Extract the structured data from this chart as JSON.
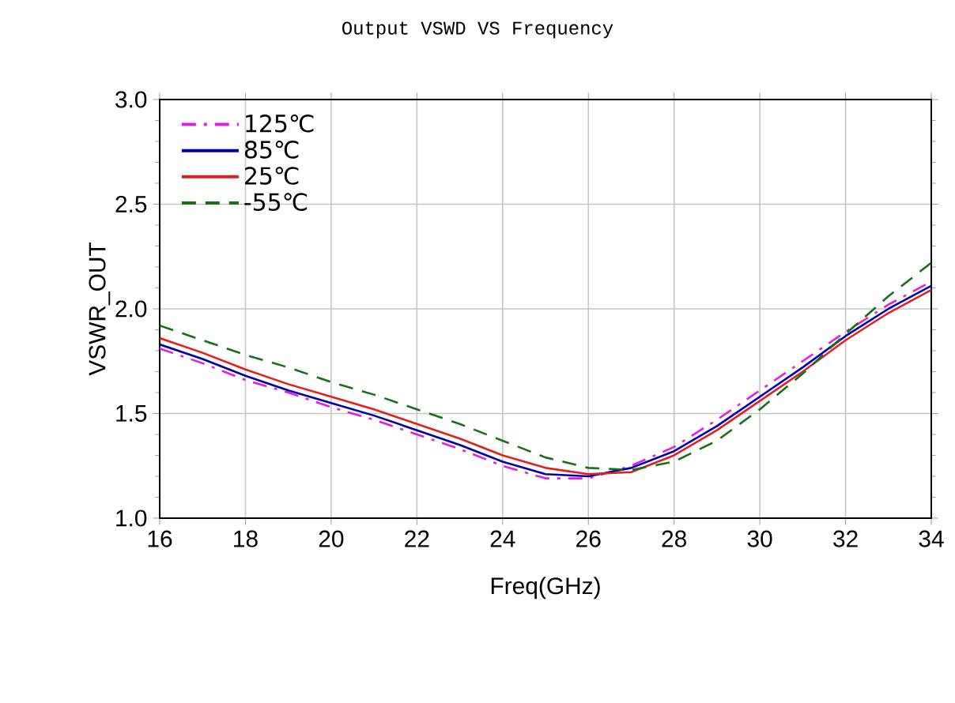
{
  "chart_data": {
    "type": "line",
    "title": "Output VSWD VS Frequency",
    "xlabel": "Freq(GHz)",
    "ylabel": "VSWR_OUT",
    "x": [
      16,
      17,
      18,
      19,
      20,
      21,
      22,
      23,
      24,
      25,
      26,
      27,
      28,
      29,
      30,
      31,
      32,
      33,
      34
    ],
    "series": [
      {
        "name": "125℃",
        "color": "#e020e0",
        "line_style": "dashdot",
        "values": [
          1.81,
          1.74,
          1.66,
          1.6,
          1.53,
          1.47,
          1.4,
          1.33,
          1.25,
          1.19,
          1.19,
          1.25,
          1.34,
          1.47,
          1.61,
          1.75,
          1.89,
          2.02,
          2.13
        ]
      },
      {
        "name": "85℃",
        "color": "#0000b0",
        "line_style": "solid",
        "values": [
          1.83,
          1.76,
          1.68,
          1.61,
          1.55,
          1.49,
          1.42,
          1.35,
          1.27,
          1.21,
          1.2,
          1.24,
          1.32,
          1.44,
          1.58,
          1.72,
          1.87,
          2.0,
          2.11
        ]
      },
      {
        "name": "25℃",
        "color": "#e02020",
        "line_style": "solid",
        "values": [
          1.86,
          1.79,
          1.71,
          1.64,
          1.58,
          1.52,
          1.45,
          1.38,
          1.3,
          1.24,
          1.21,
          1.22,
          1.3,
          1.42,
          1.56,
          1.7,
          1.85,
          1.98,
          2.09
        ]
      },
      {
        "name": "-55℃",
        "color": "#1a6e1a",
        "line_style": "dashed",
        "values": [
          1.92,
          1.85,
          1.78,
          1.72,
          1.65,
          1.59,
          1.52,
          1.45,
          1.37,
          1.29,
          1.24,
          1.23,
          1.27,
          1.37,
          1.52,
          1.69,
          1.88,
          2.06,
          2.22
        ]
      }
    ],
    "xlim": [
      16,
      34
    ],
    "ylim": [
      1,
      3
    ],
    "xticks": [
      16,
      18,
      20,
      22,
      24,
      26,
      28,
      30,
      32,
      34
    ],
    "yticks": [
      {
        "value": 1,
        "label": "1.0"
      },
      {
        "value": 1.5,
        "label": "1.5"
      },
      {
        "value": 2,
        "label": "2.0"
      },
      {
        "value": 2.5,
        "label": "2.5"
      },
      {
        "value": 3,
        "label": "3.0"
      }
    ],
    "grid": true,
    "legend": "top left"
  }
}
